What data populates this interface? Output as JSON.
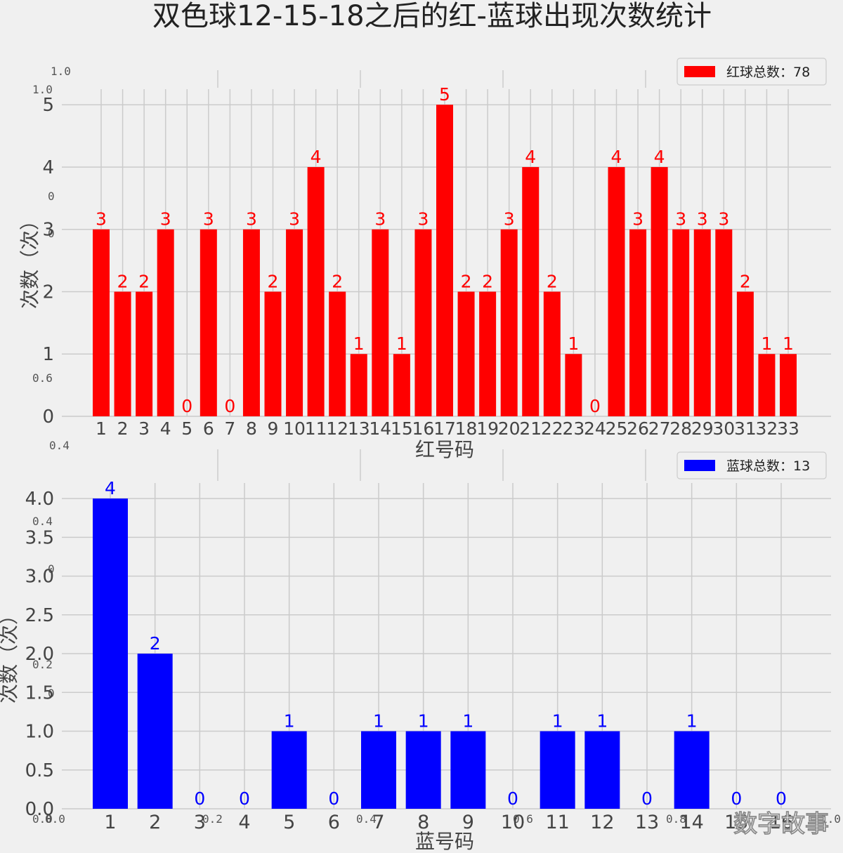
{
  "title": "双色球12-15-18之后的红-蓝球出现次数统计",
  "watermark": "数字故事",
  "ghost_ticks": {
    "left": [
      "1.0",
      "1.0",
      "0",
      "0",
      "0.6",
      "0.4",
      "0.4",
      "0",
      "0.2",
      "0",
      "0.0"
    ],
    "bottom": [
      "0.0",
      "0.2",
      "0.4",
      "0.6",
      "0.8",
      "1.0"
    ]
  },
  "chart_data": [
    {
      "type": "bar",
      "name": "red",
      "color": "#ff0000",
      "label_color": "#ff0000",
      "legend": "红球总数：78",
      "legend_position": "top-right",
      "xlabel": "红号码",
      "ylabel": "次数（次）",
      "grid": true,
      "ylim": [
        0,
        5.25
      ],
      "yticks": [
        0,
        1,
        2,
        3,
        4,
        5
      ],
      "ytick_labels": [
        "0",
        "1",
        "2",
        "3",
        "4",
        "5"
      ],
      "categories": [
        "1",
        "2",
        "3",
        "4",
        "5",
        "6",
        "7",
        "8",
        "9",
        "10",
        "11",
        "12",
        "13",
        "14",
        "15",
        "16",
        "17",
        "18",
        "19",
        "20",
        "21",
        "22",
        "23",
        "24",
        "25",
        "26",
        "27",
        "28",
        "29",
        "30",
        "31",
        "32",
        "33"
      ],
      "values": [
        3,
        2,
        2,
        3,
        0,
        3,
        0,
        3,
        2,
        3,
        4,
        2,
        1,
        3,
        1,
        3,
        5,
        2,
        2,
        3,
        4,
        2,
        1,
        0,
        4,
        3,
        4,
        3,
        3,
        3,
        2,
        1,
        1
      ]
    },
    {
      "type": "bar",
      "name": "blue",
      "color": "#0000ff",
      "label_color": "#0000ff",
      "legend": "蓝球总数：13",
      "legend_position": "top-right",
      "xlabel": "蓝号码",
      "ylabel": "次数（次）",
      "grid": true,
      "ylim": [
        0,
        4.2
      ],
      "yticks": [
        0,
        0.5,
        1,
        1.5,
        2,
        2.5,
        3,
        3.5,
        4
      ],
      "ytick_labels": [
        "0.0",
        "0.5",
        "1.0",
        "1.5",
        "2.0",
        "2.5",
        "3.0",
        "3.5",
        "4.0"
      ],
      "categories": [
        "1",
        "2",
        "3",
        "4",
        "5",
        "6",
        "7",
        "8",
        "9",
        "10",
        "11",
        "12",
        "13",
        "14",
        "15",
        "16"
      ],
      "values": [
        4,
        2,
        0,
        0,
        1,
        0,
        1,
        1,
        1,
        0,
        1,
        1,
        0,
        1,
        0,
        0
      ]
    }
  ]
}
